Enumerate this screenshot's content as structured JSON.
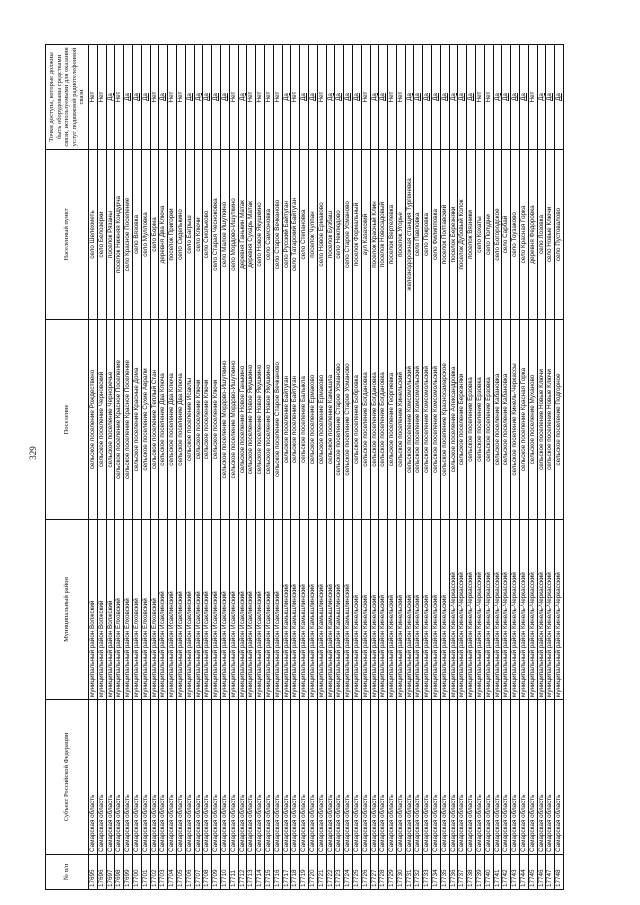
{
  "page_number": "329",
  "table": {
    "headers": [
      "№ п/п",
      "Субъект Российской Федерации",
      "Муниципальный район",
      "Поселение",
      "Населенный пункт",
      "Точки доступа, которые должны быть оборудованы средствами связи, используемыми для оказания услуг подвижной радиотелефонной связи"
    ],
    "rows": [
      [
        "17695",
        "Самарская область",
        "муниципальный район Волжский",
        "сельское поселение Рождествено",
        "село Шелехметь",
        "Нет"
      ],
      [
        "17696",
        "Самарская область",
        "муниципальный район Волжский",
        "сельское поселение Черновский",
        "село Белозерки",
        "Нет"
      ],
      [
        "17697",
        "Самарская область",
        "муниципальный район Волжский",
        "сельское поселение Черноречье",
        "поселок Рязаны",
        "Да"
      ],
      [
        "17698",
        "Самарская область",
        "муниципальный район Елховский",
        "сельское поселение Красное Поселение",
        "поселок Нижняя Кондурча",
        "Нет"
      ],
      [
        "17699",
        "Самарская область",
        "муниципальный район Елховский",
        "сельское поселение Красное Поселение",
        "село Красное Поселение",
        "Да"
      ],
      [
        "17700",
        "Самарская область",
        "муниципальный район Елховский",
        "сельское поселение Красные Дома",
        "село Вязовка",
        "Да"
      ],
      [
        "17701",
        "Самарская область",
        "муниципальный район Елховский",
        "сельское поселение Сухие Аврали",
        "село Мулловка",
        "Да"
      ],
      [
        "17702",
        "Самарская область",
        "муниципальный район Елховский",
        "сельское поселение Теплый Стан",
        "село Борма",
        "Нет"
      ],
      [
        "17703",
        "Самарская область",
        "муниципальный район Исаклинский",
        "сельское поселение Два Ключа",
        "деревня Два Ключа",
        "Да"
      ],
      [
        "17704",
        "Самарская область",
        "муниципальный район Исаклинский",
        "сельское поселение Два Ключа",
        "поселок Пригорки",
        "Нет"
      ],
      [
        "17705",
        "Самарская область",
        "муниципальный район Исаклинский",
        "сельское поселение Два Ключа",
        "село Сиделькино",
        "Нет"
      ],
      [
        "17706",
        "Самарская область",
        "муниципальный район Исаклинский",
        "сельское поселение Исаклы",
        "село Багрыш",
        "Да"
      ],
      [
        "17707",
        "Самарская область",
        "муниципальный район Исаклинский",
        "сельское поселение Ключи",
        "село Ключи",
        "Да"
      ],
      [
        "17708",
        "Самарская область",
        "муниципальный район Исаклинский",
        "сельское поселение Ключи",
        "село Смольково",
        "Да"
      ],
      [
        "17709",
        "Самарская область",
        "муниципальный район Исаклинский",
        "сельское поселение Ключи",
        "село Старая Чесноковка",
        "Да"
      ],
      [
        "17710",
        "Самарская область",
        "муниципальный район Исаклинский",
        "сельское поселение Мордово-Ишуткино",
        "село Малое Ишуткино",
        "Да"
      ],
      [
        "17711",
        "Самарская область",
        "муниципальный район Исаклинский",
        "сельское поселение Мордово-Ишуткино",
        "село Мордово-Ишуткино",
        "Нет"
      ],
      [
        "17712",
        "Самарская область",
        "муниципальный район Исаклинский",
        "сельское поселение Новое Ганькино",
        "деревня Ганькин Матак",
        "Да"
      ],
      [
        "17713",
        "Самарская область",
        "муниципальный район Исаклинский",
        "сельское поселение Новое Якушкино",
        "деревня Сухарь Матак",
        "Нет"
      ],
      [
        "17714",
        "Самарская область",
        "муниципальный район Исаклинский",
        "сельское поселение Новое Якушкино",
        "село Новое Якушкино",
        "Нет"
      ],
      [
        "17715",
        "Самарская область",
        "муниципальный район Исаклинский",
        "сельское поселение Новое Якушкино",
        "село Самсоновка",
        "Нет"
      ],
      [
        "17716",
        "Самарская область",
        "муниципальный район Исаклинский",
        "сельское поселение Старое Вечканово",
        "село Старое Вечканово",
        "Нет"
      ],
      [
        "17717",
        "Самарская область",
        "муниципальный район Камышлинский",
        "сельское поселение Байтуган",
        "село Русский Байтуган",
        "Да"
      ],
      [
        "17718",
        "Самарская область",
        "муниципальный район Камышлинский",
        "сельское поселение Байтуган",
        "село Татарский Байтуган",
        "Нет"
      ],
      [
        "17719",
        "Самарская область",
        "муниципальный район Камышлинский",
        "сельское поселение Балыкла",
        "село Степановка",
        "Да"
      ],
      [
        "17720",
        "Самарская область",
        "муниципальный район Камышлинский",
        "сельское поселение Ермаково",
        "поселок Чулпан",
        "Да"
      ],
      [
        "17721",
        "Самарская область",
        "муниципальный район Камышлинский",
        "сельское поселение Ермаково",
        "село Новое Ермаково",
        "Нет"
      ],
      [
        "17722",
        "Самарская область",
        "муниципальный район Камышлинский",
        "сельское поселение Камышла",
        "поселок Бузбаш",
        "Да"
      ],
      [
        "17723",
        "Самарская область",
        "муниципальный район Камышлинский",
        "сельское поселение Старое Усманово",
        "село Неклюдово",
        "Да"
      ],
      [
        "17724",
        "Самарская область",
        "муниципальный район Камышлинский",
        "сельское поселение Старое Усманово",
        "село Старое Усманово",
        "Да"
      ],
      [
        "17725",
        "Самарская область",
        "муниципальный район Кинельский",
        "сельское поселение Бобровка",
        "поселок Формальный",
        "Да"
      ],
      [
        "17726",
        "Самарская область",
        "муниципальный район Кинельский",
        "сельское поселение Богдановка",
        "аул Казахский",
        "Нет"
      ],
      [
        "17727",
        "Самарская область",
        "муниципальный район Кинельский",
        "сельское поселение Богдановка",
        "поселок Красный Клин",
        "Да"
      ],
      [
        "17728",
        "Самарская область",
        "муниципальный район Кинельский",
        "сельское поселение Богдановка",
        "поселок Новосадовый",
        "Да"
      ],
      [
        "17729",
        "Самарская область",
        "муниципальный район Кинельский",
        "сельское поселение Георгиевка",
        "поселок Вертелевка",
        "Нет"
      ],
      [
        "17730",
        "Самарская область",
        "муниципальный район Кинельский",
        "сельское поселение Кинельский",
        "поселок Угорье",
        "Нет"
      ],
      [
        "17731",
        "Самарская область",
        "муниципальный район Кинельский",
        "сельское поселение Комсомольский",
        "железнодорожная станция Тургеневка",
        "Да"
      ],
      [
        "17732",
        "Самарская область",
        "муниципальный район Кинельский",
        "сельское поселение Комсомольский",
        "село Павловка",
        "Да"
      ],
      [
        "17733",
        "Самарская область",
        "муниципальный район Кинельский",
        "сельское поселение Комсомольский",
        "село Покровка",
        "Да"
      ],
      [
        "17734",
        "Самарская область",
        "муниципальный район Кинельский",
        "сельское поселение Комсомольский",
        "село Филипповка",
        "Да"
      ],
      [
        "17735",
        "Самарская область",
        "муниципальный район Кинельский",
        "сельское поселение Красносамарское",
        "поселок Полтавский",
        "Да"
      ],
      [
        "17736",
        "Самарская область",
        "муниципальный район Кинель-Черкасский",
        "сельское поселение Александровка",
        "поселок Березняки",
        "Да"
      ],
      [
        "17737",
        "Самарская область",
        "муниципальный район Кинель-Черкасский",
        "сельское поселение Березняки",
        "поселок Дубовый Колок",
        "Да"
      ],
      [
        "17738",
        "Самарская область",
        "муниципальный район Кинель-Черкасский",
        "сельское поселение Ерзовка",
        "поселок Вязники",
        "Да"
      ],
      [
        "17739",
        "Самарская область",
        "муниципальный район Кинель-Черкасский",
        "сельское поселение Ерзовка",
        "село Кохаты",
        "Нет"
      ],
      [
        "17740",
        "Самарская область",
        "муниципальный район Кинель-Черкасский",
        "сельское поселение Ерзовка",
        "село Полудни",
        "Нет"
      ],
      [
        "17741",
        "Самарская область",
        "муниципальный район Кинель-Черкасский",
        "сельское поселение Кабановка",
        "село Богородское",
        "Да"
      ],
      [
        "17742",
        "Самарская область",
        "муниципальный район Кинель-Черкасский",
        "сельское поселение Кабановка",
        "село Сарбай",
        "Да"
      ],
      [
        "17743",
        "Самарская область",
        "муниципальный район Кинель-Черкасский",
        "сельское поселение Кинель-Черкассы",
        "село Тоузаково",
        "Да"
      ],
      [
        "17744",
        "Самарская область",
        "муниципальный район Кинель-Черкасский",
        "сельское поселение Красная Горка",
        "село Красная Горка",
        "Да"
      ],
      [
        "17745",
        "Самарская область",
        "муниципальный район Кинель-Черкасский",
        "сельское поселение Муханово",
        "деревня Федоровка",
        "Нет"
      ],
      [
        "17746",
        "Самарская область",
        "муниципальный район Кинель-Черкасский",
        "сельское поселение Новые Ключи",
        "село Лозовка",
        "Да"
      ],
      [
        "17747",
        "Самарская область",
        "муниципальный район Кинель-Черкасский",
        "сельское поселение Новые Ключи",
        "село Новые Ключи",
        "Да"
      ],
      [
        "17748",
        "Самарская область",
        "муниципальный район Кинель-Черкасский",
        "сельское поселение Подгорное",
        "село Пустовалово",
        "Да"
      ]
    ]
  }
}
